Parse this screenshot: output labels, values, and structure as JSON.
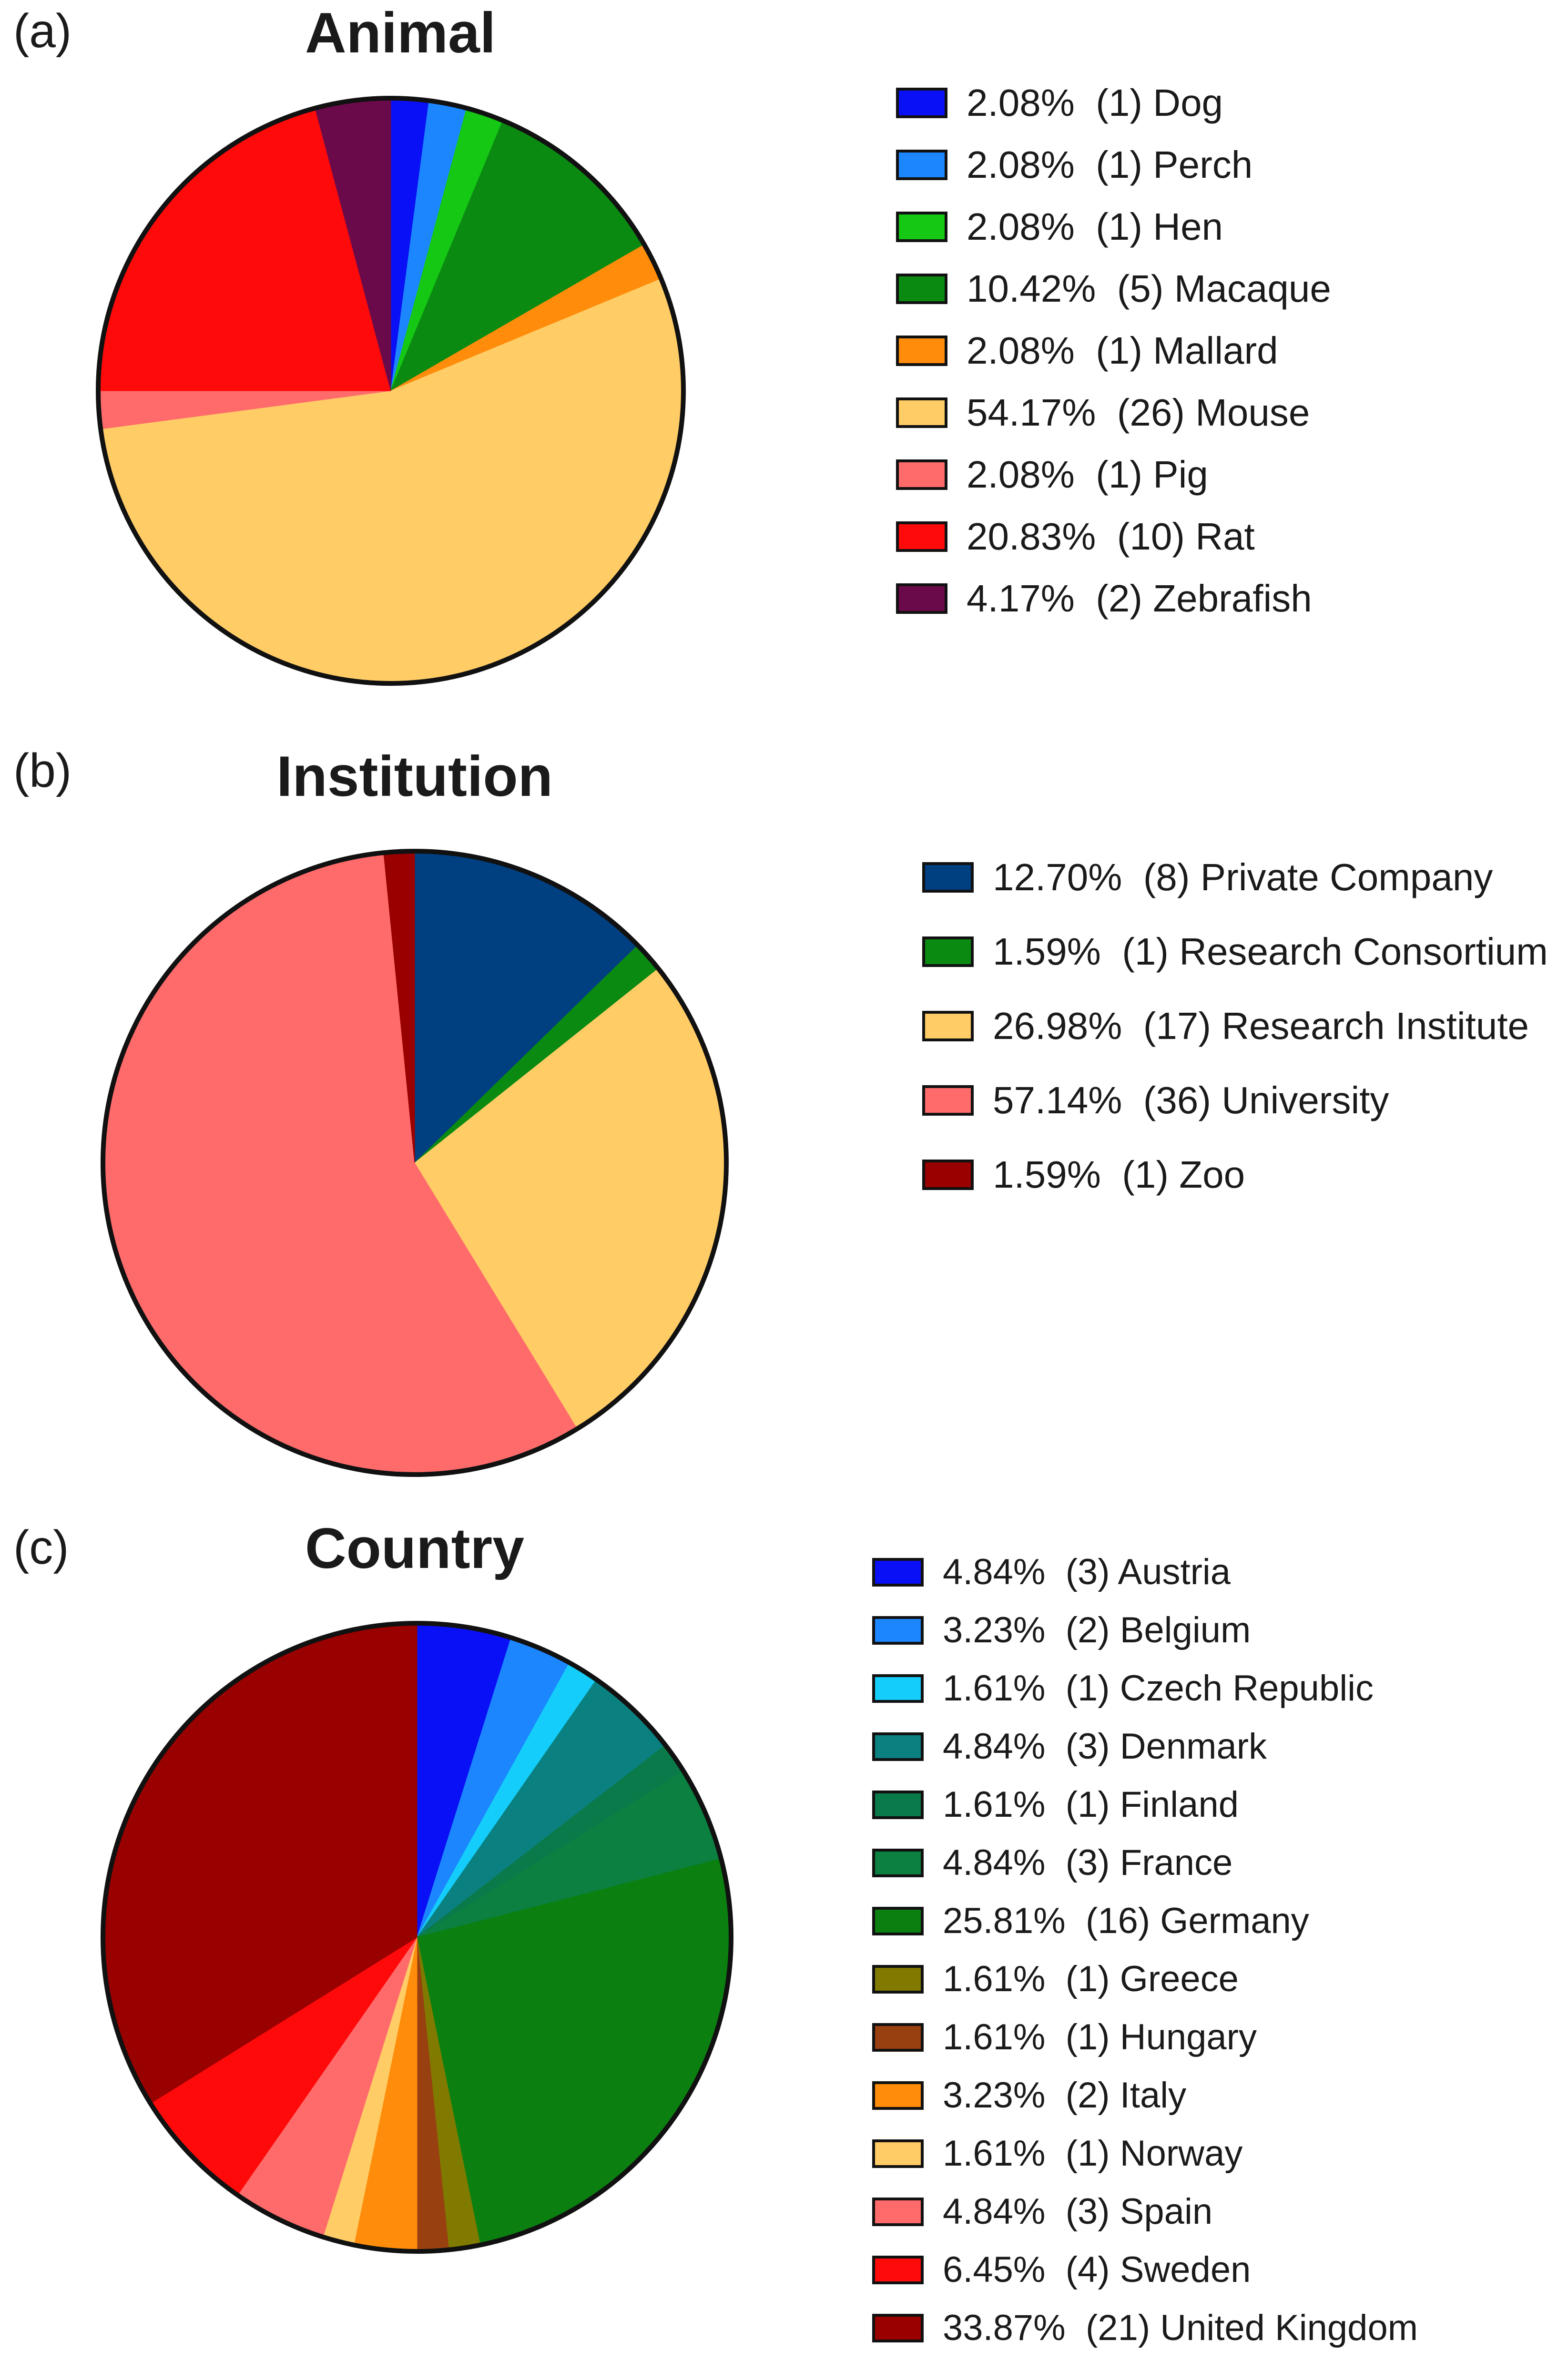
{
  "chart_data": [
    {
      "type": "pie",
      "panel_label": "(a)",
      "title": "Animal",
      "start": "12 o'clock, clockwise",
      "legend_placement": "right",
      "slices": [
        {
          "label": "Dog",
          "count": 1,
          "percent": 2.08,
          "legend": "2.08%  (1) Dog",
          "color": "#0a10f5"
        },
        {
          "label": "Perch",
          "count": 1,
          "percent": 2.08,
          "legend": "2.08%  (1) Perch",
          "color": "#1c86ff"
        },
        {
          "label": "Hen",
          "count": 1,
          "percent": 2.08,
          "legend": "2.08%  (1) Hen",
          "color": "#14c814"
        },
        {
          "label": "Macaque",
          "count": 5,
          "percent": 10.42,
          "legend": "10.42%  (5) Macaque",
          "color": "#0b8a12"
        },
        {
          "label": "Mallard",
          "count": 1,
          "percent": 2.08,
          "legend": "2.08%  (1) Mallard",
          "color": "#ff8c0a"
        },
        {
          "label": "Mouse",
          "count": 26,
          "percent": 54.17,
          "legend": "54.17%  (26) Mouse",
          "color": "#ffcc66"
        },
        {
          "label": "Pig",
          "count": 1,
          "percent": 2.08,
          "legend": "2.08%  (1) Pig",
          "color": "#ff6b6b"
        },
        {
          "label": "Rat",
          "count": 10,
          "percent": 20.83,
          "legend": "20.83%  (10) Rat",
          "color": "#ff0a0a"
        },
        {
          "label": "Zebrafish",
          "count": 2,
          "percent": 4.17,
          "legend": "4.17%  (2) Zebrafish",
          "color": "#6b0a4a"
        }
      ]
    },
    {
      "type": "pie",
      "panel_label": "(b)",
      "title": "Institution",
      "start": "12 o'clock, clockwise",
      "legend_placement": "right",
      "slices": [
        {
          "label": "Private Company",
          "count": 8,
          "percent": 12.7,
          "legend": "12.70%  (8) Private Company",
          "color": "#003f80"
        },
        {
          "label": "Research Consortium",
          "count": 1,
          "percent": 1.59,
          "legend": "1.59%  (1) Research Consortium",
          "color": "#0b8a12"
        },
        {
          "label": "Research Institute",
          "count": 17,
          "percent": 26.98,
          "legend": "26.98%  (17) Research Institute",
          "color": "#ffcc66"
        },
        {
          "label": "University",
          "count": 36,
          "percent": 57.14,
          "legend": "57.14%  (36) University",
          "color": "#ff6b6b"
        },
        {
          "label": "Zoo",
          "count": 1,
          "percent": 1.59,
          "legend": "1.59%  (1) Zoo",
          "color": "#990000"
        }
      ]
    },
    {
      "type": "pie",
      "panel_label": "(c)",
      "title": "Country",
      "start": "12 o'clock, clockwise",
      "legend_placement": "right",
      "slices": [
        {
          "label": "Austria",
          "count": 3,
          "percent": 4.84,
          "legend": "4.84%  (3) Austria",
          "color": "#0a10f5"
        },
        {
          "label": "Belgium",
          "count": 2,
          "percent": 3.23,
          "legend": "3.23%  (2) Belgium",
          "color": "#1c86ff"
        },
        {
          "label": "Czech Republic",
          "count": 1,
          "percent": 1.61,
          "legend": "1.61%  (1) Czech Republic",
          "color": "#14cdfa"
        },
        {
          "label": "Denmark",
          "count": 3,
          "percent": 4.84,
          "legend": "4.84%  (3) Denmark",
          "color": "#0b8080"
        },
        {
          "label": "Finland",
          "count": 1,
          "percent": 1.61,
          "legend": "1.61%  (1) Finland",
          "color": "#0b7a4a"
        },
        {
          "label": "France",
          "count": 3,
          "percent": 4.84,
          "legend": "4.84%  (3) France",
          "color": "#0b8040"
        },
        {
          "label": "Germany",
          "count": 16,
          "percent": 25.81,
          "legend": "25.81%  (16) Germany",
          "color": "#0b8010"
        },
        {
          "label": "Greece",
          "count": 1,
          "percent": 1.61,
          "legend": "1.61%  (1) Greece",
          "color": "#807a00"
        },
        {
          "label": "Hungary",
          "count": 1,
          "percent": 1.61,
          "legend": "1.61%  (1) Hungary",
          "color": "#994010"
        },
        {
          "label": "Italy",
          "count": 2,
          "percent": 3.23,
          "legend": "3.23%  (2) Italy",
          "color": "#ff8c0a"
        },
        {
          "label": "Norway",
          "count": 1,
          "percent": 1.61,
          "legend": "1.61%  (1) Norway",
          "color": "#ffcc66"
        },
        {
          "label": "Spain",
          "count": 3,
          "percent": 4.84,
          "legend": "4.84%  (3) Spain",
          "color": "#ff6b6b"
        },
        {
          "label": "Sweden",
          "count": 4,
          "percent": 6.45,
          "legend": "6.45%  (4) Sweden",
          "color": "#ff0a0a"
        },
        {
          "label": "United Kingdom",
          "count": 21,
          "percent": 33.87,
          "legend": "33.87%  (21) United Kingdom",
          "color": "#990000"
        }
      ]
    }
  ]
}
